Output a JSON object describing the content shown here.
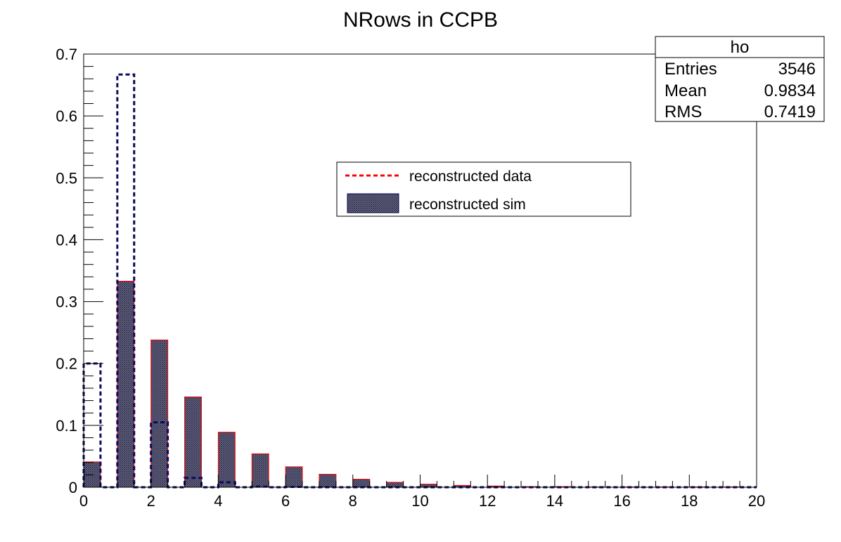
{
  "chart_data": {
    "type": "bar",
    "title": "NRows in CCPB",
    "xlabel": "",
    "ylabel": "",
    "xlim": [
      0,
      20
    ],
    "ylim": [
      0,
      0.7
    ],
    "bin_width": 0.5,
    "x_ticks": [
      "0",
      "2",
      "4",
      "6",
      "8",
      "10",
      "12",
      "14",
      "16",
      "18",
      "20"
    ],
    "y_ticks": [
      "0",
      "0.1",
      "0.2",
      "0.3",
      "0.4",
      "0.5",
      "0.6",
      "0.7"
    ],
    "series": [
      {
        "name": "reconstructed sim",
        "style": "filled-hatched",
        "color": "#0a0a5a",
        "bins": [
          {
            "x": 0,
            "value": 0.2
          },
          {
            "x": 1,
            "value": 0.667
          },
          {
            "x": 2,
            "value": 0.105
          },
          {
            "x": 3,
            "value": 0.015
          },
          {
            "x": 4,
            "value": 0.008
          },
          {
            "x": 5,
            "value": 0.001
          },
          {
            "x": 6,
            "value": 0.0005
          }
        ]
      },
      {
        "name": "reconstructed data",
        "style": "dashed-outline",
        "color": "#ff0000",
        "bins": [
          {
            "x": 0,
            "value": 0.041
          },
          {
            "x": 1,
            "value": 0.333
          },
          {
            "x": 2,
            "value": 0.238
          },
          {
            "x": 3,
            "value": 0.146
          },
          {
            "x": 4,
            "value": 0.089
          },
          {
            "x": 5,
            "value": 0.054
          },
          {
            "x": 6,
            "value": 0.033
          },
          {
            "x": 7,
            "value": 0.021
          },
          {
            "x": 8,
            "value": 0.013
          },
          {
            "x": 9,
            "value": 0.008
          },
          {
            "x": 10,
            "value": 0.005
          },
          {
            "x": 11,
            "value": 0.003
          },
          {
            "x": 12,
            "value": 0.002
          },
          {
            "x": 13,
            "value": 0.001
          },
          {
            "x": 14,
            "value": 0.001
          },
          {
            "x": 15,
            "value": 0.0005
          },
          {
            "x": 16,
            "value": 0.0005
          },
          {
            "x": 17,
            "value": 0.0005
          },
          {
            "x": 18,
            "value": 0.0005
          },
          {
            "x": 19,
            "value": 0.0005
          }
        ]
      }
    ],
    "legend": {
      "entries": [
        "reconstructed data",
        "reconstructed sim"
      ],
      "placement": "upper-center"
    },
    "stats_box": {
      "title": "ho",
      "rows": [
        {
          "label": "Entries",
          "value": "3546"
        },
        {
          "label": "Mean",
          "value": "0.9834"
        },
        {
          "label": "RMS",
          "value": "0.7419"
        }
      ],
      "placement": "top-right"
    },
    "grid": false
  }
}
